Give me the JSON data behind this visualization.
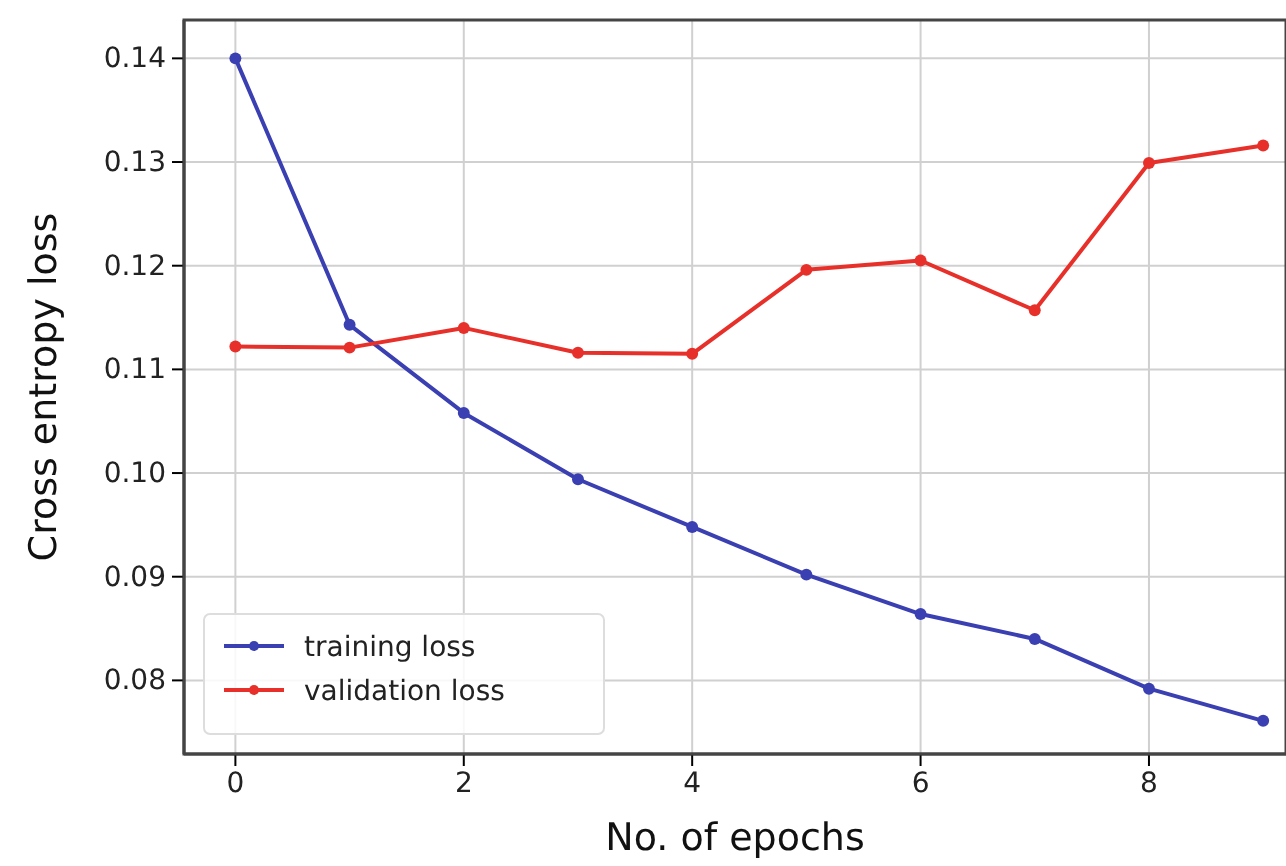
{
  "chart_data": {
    "type": "line",
    "xlabel": "No. of epochs",
    "ylabel": "Cross entropy loss",
    "x": [
      0,
      1,
      2,
      3,
      4,
      5,
      6,
      7,
      8,
      9
    ],
    "series": [
      {
        "name": "training loss",
        "color": "#3a3fb2",
        "values": [
          0.14,
          0.1143,
          0.1058,
          0.0994,
          0.0948,
          0.0902,
          0.0864,
          0.084,
          0.0792,
          0.0761
        ]
      },
      {
        "name": "validation loss",
        "color": "#e8302a",
        "values": [
          0.1122,
          0.1121,
          0.114,
          0.1116,
          0.1115,
          0.1196,
          0.1205,
          0.1157,
          0.1299,
          0.1316
        ]
      }
    ],
    "xlim": [
      -0.45,
      9.2
    ],
    "xticks": [
      0,
      2,
      4,
      6,
      8
    ],
    "ylim": [
      0.0729,
      0.1437
    ],
    "yticks": [
      {
        "value": 0.08,
        "label": "0.08"
      },
      {
        "value": 0.09,
        "label": "0.09"
      },
      {
        "value": 0.1,
        "label": "0.10"
      },
      {
        "value": 0.11,
        "label": "0.11"
      },
      {
        "value": 0.12,
        "label": "0.12"
      },
      {
        "value": 0.13,
        "label": "0.13"
      },
      {
        "value": 0.14,
        "label": "0.14"
      }
    ],
    "grid": true,
    "legend": "bottom left",
    "marker": "circle",
    "line_style": "solid"
  }
}
